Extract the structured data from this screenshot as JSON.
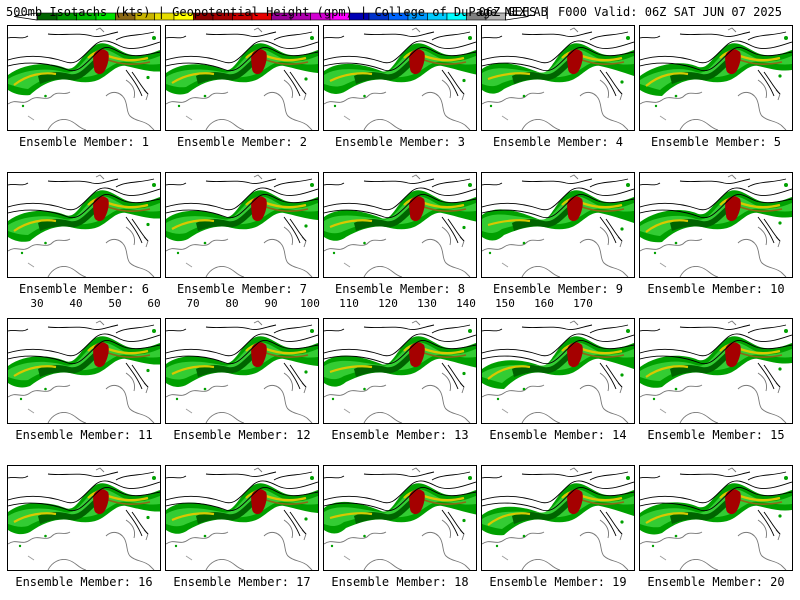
{
  "header": {
    "left": "500mb Isotachs (kts) | Geopotential Height (gpm) | College of DuPage NEXLAB",
    "right": "06Z GEFS | F000 Valid: 06Z SAT JUN 07 2025"
  },
  "panels": [
    {
      "label": "Ensemble Member: 1"
    },
    {
      "label": "Ensemble Member: 2"
    },
    {
      "label": "Ensemble Member: 3"
    },
    {
      "label": "Ensemble Member: 4"
    },
    {
      "label": "Ensemble Member: 5"
    },
    {
      "label": "Ensemble Member: 6"
    },
    {
      "label": "Ensemble Member: 7"
    },
    {
      "label": "Ensemble Member: 8"
    },
    {
      "label": "Ensemble Member: 9"
    },
    {
      "label": "Ensemble Member: 10"
    },
    {
      "label": "Ensemble Member: 11"
    },
    {
      "label": "Ensemble Member: 12"
    },
    {
      "label": "Ensemble Member: 13"
    },
    {
      "label": "Ensemble Member: 14"
    },
    {
      "label": "Ensemble Member: 15"
    },
    {
      "label": "Ensemble Member: 16"
    },
    {
      "label": "Ensemble Member: 17"
    },
    {
      "label": "Ensemble Member: 18"
    },
    {
      "label": "Ensemble Member: 19"
    },
    {
      "label": "Ensemble Member: 20"
    }
  ],
  "colorbar": {
    "ticks": [
      "30",
      "40",
      "50",
      "60",
      "70",
      "80",
      "90",
      "100",
      "110",
      "120",
      "130",
      "140",
      "150",
      "160",
      "170"
    ],
    "colors": [
      "#006400",
      "#009900",
      "#00bb00",
      "#00e000",
      "#8b6914",
      "#c8b400",
      "#e6dc00",
      "#ffff00",
      "#8b0000",
      "#a50000",
      "#c80000",
      "#e60000",
      "#990099",
      "#b000b0",
      "#d200d2",
      "#ff00ff",
      "#0000b4",
      "#0033cc",
      "#0066ff",
      "#0099ff",
      "#00ccff",
      "#00ffff",
      "#808080",
      "#b4b4b4"
    ]
  },
  "map_colors": {
    "jet_outer": "#00a000",
    "jet_mid": "#33cc33",
    "jet_dark": "#006400",
    "jet_yellow": "#d8c800",
    "jet_brown": "#8b6914",
    "jet_core": "#a50000"
  }
}
